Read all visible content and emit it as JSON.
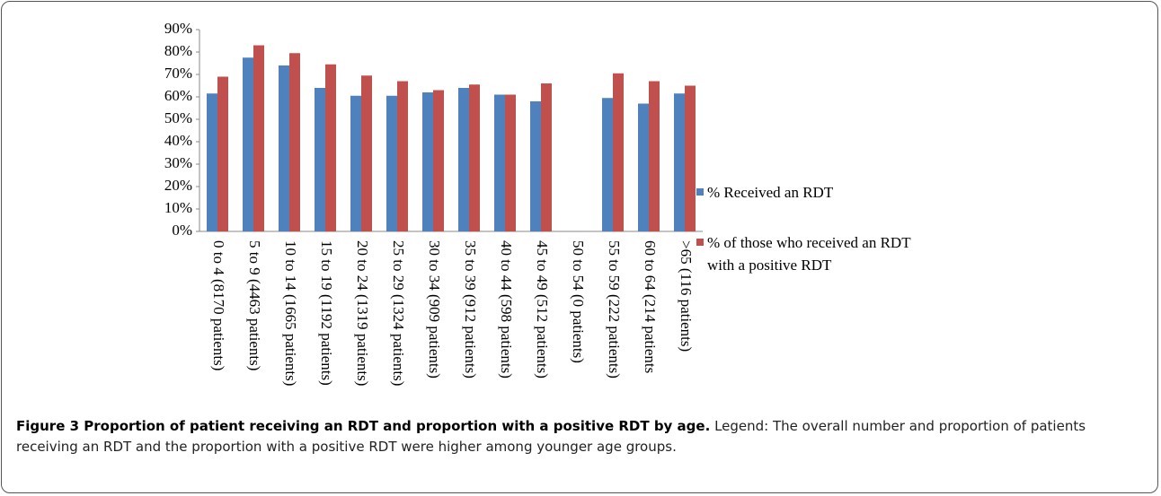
{
  "chart_data": {
    "type": "bar",
    "categories": [
      "0 to 4 (8170 patients)",
      "5 to 9 (4463 patients)",
      "10 to 14 (1665 patients)",
      "15 to 19 (1192 patients)",
      "20 to 24 (1319 patients)",
      "25 to 29 (1324 patients)",
      "30 to 34 (909 patients)",
      "35 to 39 (912 patients)",
      "40 to 44 (598 patients)",
      "45 to 49 (512 patients)",
      "50 to 54 (0 patients)",
      "55 to 59 (222 patients)",
      "60 to 64 (214 patients",
      ">65 (116 patients)"
    ],
    "series": [
      {
        "name": "% Received an RDT",
        "color": "#4f81bd",
        "values": [
          61.5,
          77.5,
          74,
          64,
          60.5,
          60.5,
          62,
          64,
          61,
          58,
          null,
          59.5,
          57,
          61.5
        ]
      },
      {
        "name": "% of those who received an RDT with a positive RDT",
        "color": "#c0504d",
        "values": [
          69,
          83,
          79.5,
          74.5,
          69.5,
          67,
          63,
          65.5,
          61,
          66,
          null,
          70.5,
          67,
          65
        ]
      }
    ],
    "ylim": [
      0,
      90
    ],
    "yticks": [
      {
        "value": 0,
        "label": "0%"
      },
      {
        "value": 10,
        "label": "10%"
      },
      {
        "value": 20,
        "label": "20%"
      },
      {
        "value": 30,
        "label": "30%"
      },
      {
        "value": 40,
        "label": "40%"
      },
      {
        "value": 50,
        "label": "50%"
      },
      {
        "value": 60,
        "label": "60%"
      },
      {
        "value": 70,
        "label": "70%"
      },
      {
        "value": 80,
        "label": "80%"
      },
      {
        "value": 90,
        "label": "90%"
      }
    ],
    "grid": false,
    "legend": "right"
  },
  "caption": {
    "title": "Figure 3 Proportion of patient receiving an RDT and proportion with a positive RDT by age.",
    "text": "Legend: The overall number and proportion of patients receiving an RDT and the proportion with a positive RDT were higher among younger age groups."
  }
}
